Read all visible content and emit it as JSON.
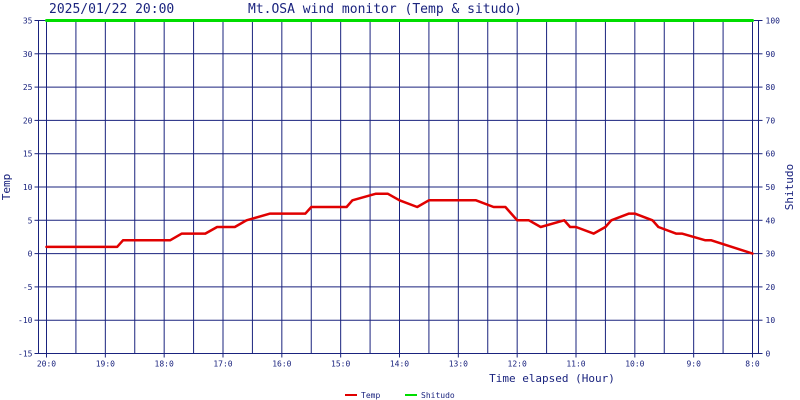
{
  "header": {
    "timestamp": "2025/01/22 20:00",
    "title": "Mt.OSA wind monitor (Temp & situdo)"
  },
  "chart_data": {
    "type": "line",
    "x_label": "Time elapsed (Hour)",
    "y_label_left": "Temp",
    "y_label_right": "Shitudo",
    "x_ticks": [
      "20:0",
      "19:0",
      "18:0",
      "17:0",
      "16:0",
      "15:0",
      "14:0",
      "13:0",
      "12:0",
      "11:0",
      "10:0",
      "9:0",
      "8:0"
    ],
    "y_left_ticks": [
      35,
      30,
      25,
      20,
      15,
      10,
      5,
      0,
      -5,
      -10,
      -15
    ],
    "y_right_ticks": [
      100,
      90,
      80,
      70,
      60,
      50,
      40,
      30,
      20,
      10,
      0
    ],
    "ylim_left": [
      -15,
      35
    ],
    "ylim_right": [
      0,
      100
    ],
    "xlim_hours_elapsed": [
      0,
      12
    ],
    "grid": true,
    "legend_position": "bottom",
    "colors": {
      "Temp": "#e00000",
      "Shitudo": "#00dd00",
      "grid": "#1a237e"
    },
    "series": [
      {
        "name": "Temp",
        "axis": "left",
        "x": [
          0,
          1.2,
          1.3,
          2.1,
          2.3,
          2.7,
          2.9,
          3.2,
          3.4,
          3.8,
          4.0,
          4.4,
          4.5,
          5.1,
          5.2,
          5.6,
          5.8,
          6.0,
          6.3,
          6.5,
          6.7,
          6.9,
          7.1,
          7.3,
          7.6,
          7.8,
          8.0,
          8.2,
          8.4,
          8.8,
          8.9,
          9.0,
          9.3,
          9.5,
          9.6,
          9.9,
          10.0,
          10.3,
          10.4,
          10.7,
          10.8,
          11.2,
          11.3,
          12.0
        ],
        "y": [
          1,
          1,
          2,
          2,
          3,
          3,
          4,
          4,
          5,
          6,
          6,
          6,
          7,
          7,
          8,
          9,
          9,
          8,
          7,
          8,
          8,
          8,
          8,
          8,
          7,
          7,
          5,
          5,
          4,
          5,
          4,
          4,
          3,
          4,
          5,
          6,
          6,
          5,
          4,
          3,
          3,
          2,
          2,
          0
        ]
      },
      {
        "name": "Shitudo",
        "axis": "right",
        "x": [
          0,
          12
        ],
        "y": [
          100,
          100
        ]
      }
    ],
    "legend": [
      {
        "name": "Temp"
      },
      {
        "name": "Shitudo"
      }
    ]
  }
}
